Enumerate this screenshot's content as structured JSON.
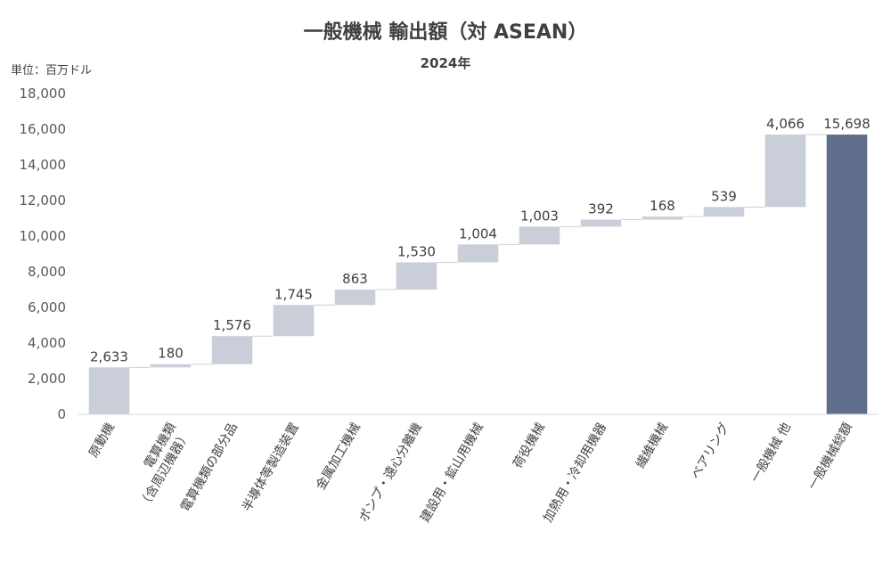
{
  "chart_title": "一般機械 輸出額（対 ASEAN）",
  "chart_subtitle": "2024年",
  "unit_label": "単位：百万ドル",
  "colors": {
    "increase": "#c9ced8",
    "total": "#5f6e8a",
    "connector": "#d0d0d0",
    "axis": "#d9d9d9"
  },
  "chart_data": {
    "type": "bar",
    "subtype": "waterfall",
    "title": "一般機械 輸出額（対 ASEAN）",
    "subtitle": "2024年",
    "ylabel": "単位：百万ドル",
    "ylim": [
      0,
      18000
    ],
    "yticks": [
      0,
      2000,
      4000,
      6000,
      8000,
      10000,
      12000,
      14000,
      16000,
      18000
    ],
    "grid": false,
    "categories": [
      "原動機",
      "電算機類\n（含周辺機器）",
      "電算機類の部分品",
      "半導体等製造装置",
      "金属加工機械",
      "ポンプ・遠心分離機",
      "建設用・鉱山用機械",
      "荷役機械",
      "加熱用・冷却用機器",
      "繊維機械",
      "ベアリング",
      "一般機械 他",
      "一般機械総額"
    ],
    "values": [
      2633,
      180,
      1576,
      1745,
      863,
      1530,
      1004,
      1003,
      392,
      168,
      539,
      4066,
      15698
    ],
    "value_labels": [
      "2,633",
      "180",
      "1,576",
      "1,745",
      "863",
      "1,530",
      "1,004",
      "1,003",
      "392",
      "168",
      "539",
      "4,066",
      "15,698"
    ],
    "is_total": [
      false,
      false,
      false,
      false,
      false,
      false,
      false,
      false,
      false,
      false,
      false,
      false,
      true
    ]
  }
}
